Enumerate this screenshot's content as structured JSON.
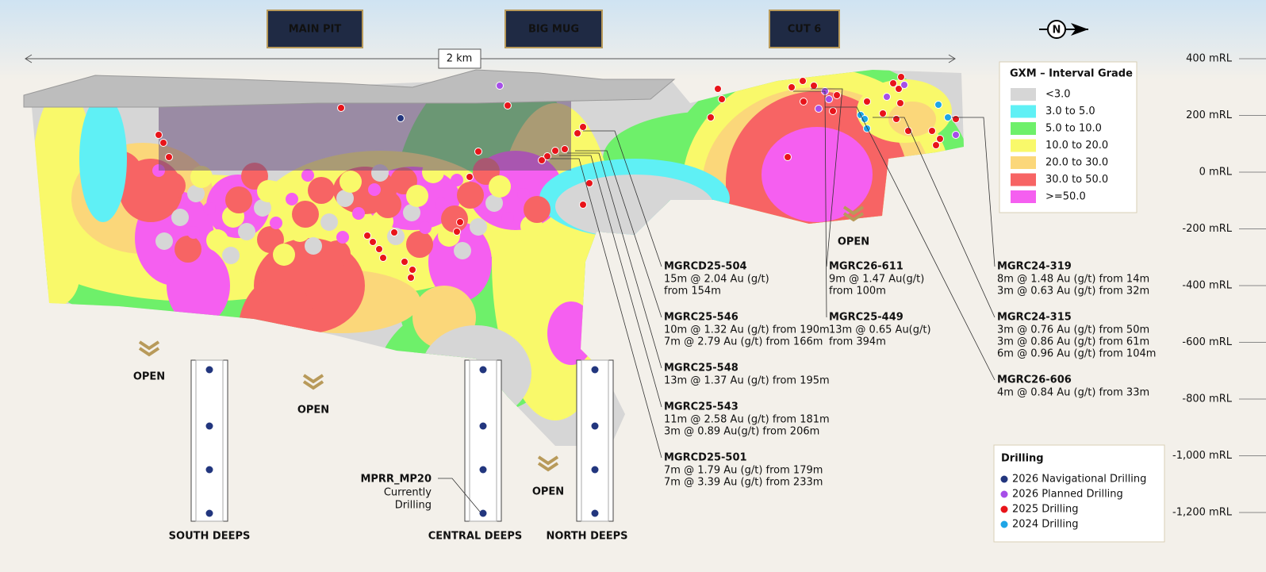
{
  "header": {
    "pit_labels": [
      "MAIN PIT",
      "BIG MUG",
      "CUT 6"
    ],
    "north": "N",
    "scale": "2 km"
  },
  "grade_legend": {
    "title": "GXM – Interval Grade",
    "items": [
      {
        "label": "<3.0",
        "color": "#d6d6d6"
      },
      {
        "label": "3.0 to 5.0",
        "color": "#5ff0f5"
      },
      {
        "label": "5.0 to 10.0",
        "color": "#6ef06a"
      },
      {
        "label": "10.0 to 20.0",
        "color": "#f9f96a"
      },
      {
        "label": "20.0 to 30.0",
        "color": "#fbd77a"
      },
      {
        "label": "30.0 to 50.0",
        "color": "#f76464"
      },
      {
        "label": ">=50.0",
        "color": "#f55ff0"
      }
    ]
  },
  "elevation_ticks": [
    "400 mRL",
    "200 mRL",
    "0 mRL",
    "-200 mRL",
    "-400 mRL",
    "-600 mRL",
    "-800 mRL",
    "-1,000 mRL",
    "-1,200 mRL"
  ],
  "drill_holes": [
    {
      "name": "MGRCD25-504",
      "lines": [
        "15m @ 2.04 Au (g/t)",
        "from 154m"
      ]
    },
    {
      "name": "MGRC25-546",
      "lines": [
        "10m @ 1.32 Au (g/t) from 190m",
        "7m @ 2.79 Au (g/t) from 166m"
      ]
    },
    {
      "name": "MGRC25-548",
      "lines": [
        "13m @ 1.37 Au (g/t) from 195m"
      ]
    },
    {
      "name": "MGRC25-543",
      "lines": [
        "11m @ 2.58 Au (g/t) from 181m",
        "3m @ 0.89 Au(g/t) from 206m"
      ]
    },
    {
      "name": "MGRCD25-501",
      "lines": [
        "7m @ 1.79 Au (g/t) from 179m",
        "7m @ 3.39 Au (g/t) from 233m"
      ]
    },
    {
      "name": "MGRC26-611",
      "lines": [
        "9m @ 1.47 Au(g/t)",
        "from 100m"
      ]
    },
    {
      "name": "MGRC25-449",
      "lines": [
        "13m @ 0.65 Au(g/t)",
        "from 394m"
      ]
    },
    {
      "name": "MGRC24-319",
      "lines": [
        "8m @ 1.48 Au (g/t) from 14m",
        "3m @ 0.63 Au (g/t) from 32m"
      ]
    },
    {
      "name": "MGRC24-315",
      "lines": [
        "3m @ 0.76 Au (g/t) from 50m",
        "3m @ 0.86 Au (g/t) from 61m",
        "6m @ 0.96 Au (g/t) from 104m"
      ]
    },
    {
      "name": "MGRC26-606",
      "lines": [
        "4m @ 0.84 Au (g/t) from 33m"
      ]
    }
  ],
  "open_labels": [
    "OPEN",
    "OPEN",
    "OPEN",
    "OPEN"
  ],
  "deeps": [
    "SOUTH DEEPS",
    "CENTRAL DEEPS",
    "NORTH DEEPS"
  ],
  "current_hole": {
    "name": "MPRR_MP20",
    "lines": [
      "Currently",
      "Drilling"
    ]
  },
  "drilling_legend": {
    "title": "Drilling",
    "items": [
      {
        "label": "2026 Navigational Drilling",
        "color": "#22367e"
      },
      {
        "label": "2026 Planned Drilling",
        "color": "#a64ee8"
      },
      {
        "label": "2025 Drilling",
        "color": "#e8141a"
      },
      {
        "label": "2024 Drilling",
        "color": "#1ea5e6"
      }
    ]
  }
}
